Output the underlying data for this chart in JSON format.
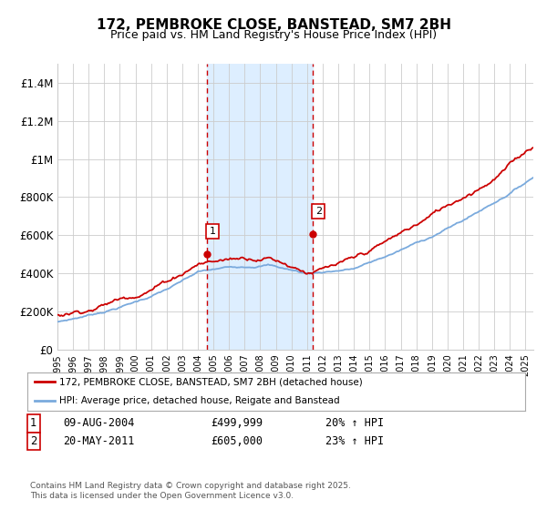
{
  "title": "172, PEMBROKE CLOSE, BANSTEAD, SM7 2BH",
  "subtitle": "Price paid vs. HM Land Registry's House Price Index (HPI)",
  "title_fontsize": 11,
  "subtitle_fontsize": 9,
  "ylabel_ticks": [
    "£0",
    "£200K",
    "£400K",
    "£600K",
    "£800K",
    "£1M",
    "£1.2M",
    "£1.4M"
  ],
  "ytick_values": [
    0,
    200000,
    400000,
    600000,
    800000,
    1000000,
    1200000,
    1400000
  ],
  "ylim": [
    0,
    1500000
  ],
  "xlim_start": 1995,
  "xlim_end": 2025.5,
  "sale1_x": 2004.6,
  "sale1_y": 499999,
  "sale2_x": 2011.38,
  "sale2_y": 605000,
  "shade_xmin": 2004.6,
  "shade_xmax": 2011.38,
  "red_color": "#cc0000",
  "blue_color": "#7aaadd",
  "shade_color": "#ddeeff",
  "grid_color": "#cccccc",
  "bg_color": "#ffffff",
  "legend_entry1": "172, PEMBROKE CLOSE, BANSTEAD, SM7 2BH (detached house)",
  "legend_entry2": "HPI: Average price, detached house, Reigate and Banstead",
  "footnote": "Contains HM Land Registry data © Crown copyright and database right 2025.\nThis data is licensed under the Open Government Licence v3.0.",
  "table_row1": [
    "1",
    "09-AUG-2004",
    "£499,999",
    "20% ↑ HPI"
  ],
  "table_row2": [
    "2",
    "20-MAY-2011",
    "£605,000",
    "23% ↑ HPI"
  ]
}
